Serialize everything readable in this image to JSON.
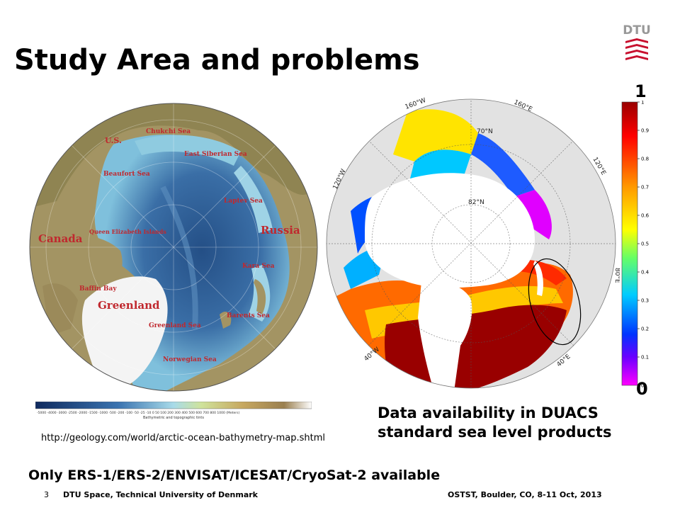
{
  "slide": {
    "title": "Study Area and problems",
    "logo_text": "DTU",
    "page_number": "3",
    "footer_left": "DTU Space, Technical University of Denmark",
    "footer_right": "OSTST, Boulder, CO, 8-11 Oct, 2013",
    "availability_note": "Only ERS-1/ERS-2/ENVISAT/ICESAT/CryoSat-2  available",
    "source_url": "http://geology.com/world/arctic-ocean-bathymetry-map.shtml",
    "caption_line1": "Data availability in DUACS",
    "caption_line2": "standard sea level products"
  },
  "bathymetry_map": {
    "labels": {
      "us": "U.S.",
      "chukchi": "Chukchi Sea",
      "east_siberian": "East Siberian Sea",
      "beaufort": "Beaufort Sea",
      "laptev": "Laptev Sea",
      "russia": "Russia",
      "canada": "Canada",
      "queen_elizabeth": "Queen Elizabeth Islands",
      "kara": "Kara Sea",
      "baffin": "Baffin Bay",
      "greenland": "Greenland",
      "greenland_sea": "Greenland Sea",
      "barents": "Barents Sea",
      "norwegian": "Norwegian Sea"
    },
    "scale_title": "Bathymetric and topographic tints",
    "scale_ticks": "-5000 -4000 -3000 -2500 -2000 -1500 -1000 -500 -200 -100 -50 -25 -10 0 50 100 200 300 400 500 600 700 800 1000 (Meters)"
  },
  "data_availability_map": {
    "coord_labels": {
      "w160": "160°W",
      "e160": "160°E",
      "n70": "70°N",
      "w120": "120°W",
      "e120": "120°E",
      "n82": "82°N",
      "e80": "80°E",
      "w40": "40°W",
      "e40": "40°E"
    }
  },
  "colorbar": {
    "max_label": "1",
    "min_label": "0",
    "ticks": [
      "1",
      "0.9",
      "0.8",
      "0.7",
      "0.6",
      "0.5",
      "0.4",
      "0.3",
      "0.2",
      "0.1",
      "0"
    ]
  },
  "colors": {
    "ocean_deep": "#2a5a8c",
    "ocean_shelf": "#8fcbe0",
    "land": "#9b8a5a",
    "ice": "#ffffff",
    "high": "#990000",
    "low": "#ff00ff",
    "logo_red": "#c8102e"
  }
}
